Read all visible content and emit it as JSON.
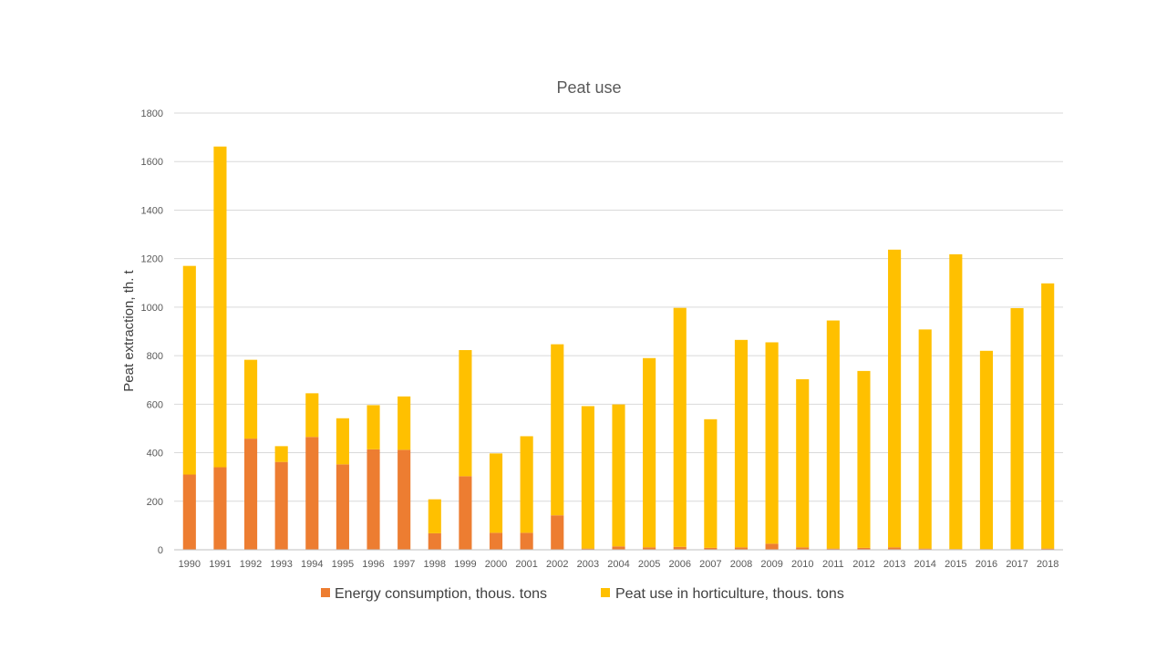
{
  "chart_data": {
    "type": "bar",
    "stacked": true,
    "title": "Peat use",
    "xlabel": "",
    "ylabel": "Peat  extraction, th. t",
    "ylim": [
      0,
      1800
    ],
    "yticks": [
      0,
      200,
      400,
      600,
      800,
      1000,
      1200,
      1400,
      1600,
      1800
    ],
    "grid": true,
    "legend_position": "bottom",
    "categories": [
      "1990",
      "1991",
      "1992",
      "1993",
      "1994",
      "1995",
      "1996",
      "1997",
      "1998",
      "1999",
      "2000",
      "2001",
      "2002",
      "2003",
      "2004",
      "2005",
      "2006",
      "2007",
      "2008",
      "2009",
      "2010",
      "2011",
      "2012",
      "2013",
      "2014",
      "2015",
      "2016",
      "2017",
      "2018"
    ],
    "series": [
      {
        "name": "Energy consumption, thous. tons",
        "color": "#ED7D31",
        "values": [
          310,
          340,
          458,
          362,
          465,
          352,
          414,
          412,
          68,
          303,
          70,
          70,
          142,
          5,
          14,
          10,
          12,
          8,
          10,
          25,
          10,
          5,
          8,
          10,
          5,
          3,
          3,
          3,
          5
        ]
      },
      {
        "name": "Peat use in horticulture, thous. tons",
        "color": "#FFC000",
        "values": [
          860,
          1322,
          325,
          65,
          180,
          190,
          182,
          220,
          140,
          520,
          327,
          398,
          705,
          587,
          585,
          780,
          985,
          530,
          855,
          830,
          693,
          940,
          729,
          1227,
          903,
          1215,
          817,
          993,
          1093
        ]
      }
    ]
  }
}
